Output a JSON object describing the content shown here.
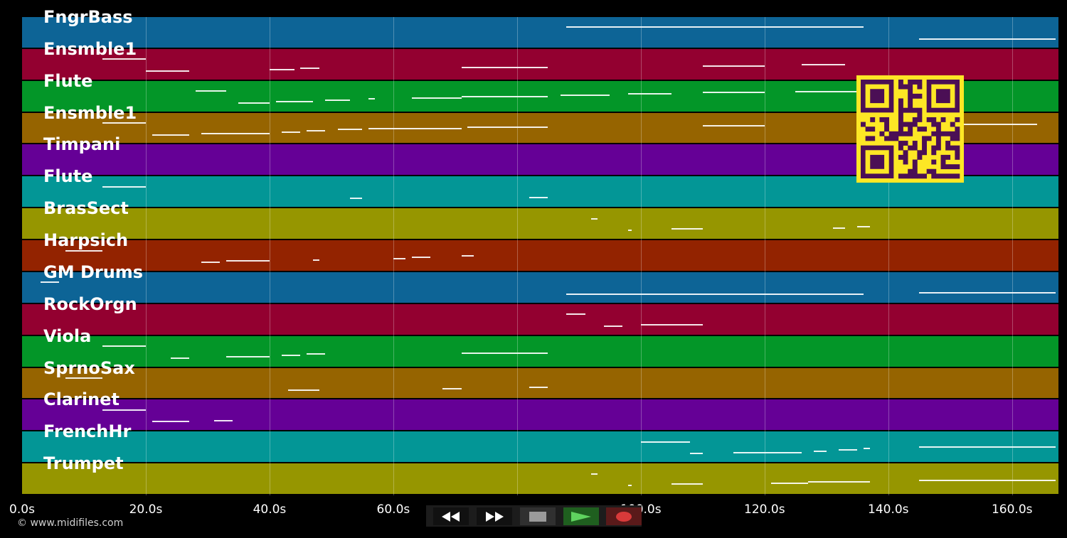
{
  "tracks": [
    {
      "label": "FngrBass",
      "color": "#0d6496"
    },
    {
      "label": "Ensmble1",
      "color": "#930030"
    },
    {
      "label": "Flute",
      "color": "#039628"
    },
    {
      "label": "Ensmble1",
      "color": "#966400"
    },
    {
      "label": "Timpani",
      "color": "#650096"
    },
    {
      "label": "Flute",
      "color": "#039696"
    },
    {
      "label": "BrasSect",
      "color": "#969600"
    },
    {
      "label": "Harpsich",
      "color": "#932300"
    },
    {
      "label": "GM Drums",
      "color": "#0d6496"
    },
    {
      "label": "RockOrgn",
      "color": "#930030"
    },
    {
      "label": "Viola",
      "color": "#039628"
    },
    {
      "label": "SprnoSax",
      "color": "#966400"
    },
    {
      "label": "Clarinet",
      "color": "#650096"
    },
    {
      "label": "FrenchHr",
      "color": "#039696"
    },
    {
      "label": "Trumpet",
      "color": "#969600"
    }
  ],
  "time_axis": {
    "ticks": [
      {
        "value": 0,
        "label": "0.0s"
      },
      {
        "value": 20,
        "label": "20.0s"
      },
      {
        "value": 40,
        "label": "40.0s"
      },
      {
        "value": 60,
        "label": "60.0s"
      },
      {
        "value": 80,
        "label": ""
      },
      {
        "value": 100,
        "label": "100.0s"
      },
      {
        "value": 120,
        "label": "120.0s"
      },
      {
        "value": 140,
        "label": "140.0s"
      },
      {
        "value": 160,
        "label": "160.0s"
      }
    ]
  },
  "notes": [
    [
      [
        88,
        136
      ],
      [
        145,
        167
      ]
    ],
    [
      [
        13,
        20
      ],
      [
        20,
        27
      ],
      [
        40,
        44
      ],
      [
        45,
        48
      ],
      [
        71,
        85
      ],
      [
        110,
        120
      ],
      [
        126,
        133
      ]
    ],
    [
      [
        28,
        33
      ],
      [
        35,
        40
      ],
      [
        41,
        47
      ],
      [
        49,
        53
      ],
      [
        56,
        57
      ],
      [
        63,
        71
      ],
      [
        71,
        85
      ],
      [
        87,
        95
      ],
      [
        98,
        105
      ],
      [
        110,
        120
      ],
      [
        125,
        135
      ]
    ],
    [
      [
        13,
        20
      ],
      [
        21,
        27
      ],
      [
        29,
        40
      ],
      [
        42,
        45
      ],
      [
        46,
        49
      ],
      [
        51,
        55
      ],
      [
        56,
        71
      ],
      [
        72,
        85
      ],
      [
        110,
        120
      ],
      [
        152,
        164
      ]
    ],
    [],
    [
      [
        13,
        20
      ],
      [
        53,
        55
      ],
      [
        82,
        85
      ]
    ],
    [
      [
        92,
        93
      ],
      [
        98,
        98.5
      ],
      [
        105,
        110
      ],
      [
        131,
        133
      ],
      [
        135,
        137
      ]
    ],
    [
      [
        7,
        13
      ],
      [
        29,
        32
      ],
      [
        33,
        40
      ],
      [
        47,
        48
      ],
      [
        60,
        62
      ],
      [
        63,
        66
      ],
      [
        71,
        73
      ]
    ],
    [
      [
        3,
        6
      ],
      [
        88,
        136
      ],
      [
        145,
        167
      ]
    ],
    [
      [
        88,
        91
      ],
      [
        94,
        97
      ],
      [
        100,
        110
      ]
    ],
    [
      [
        13,
        20
      ],
      [
        24,
        27
      ],
      [
        33,
        40
      ],
      [
        42,
        45
      ],
      [
        46,
        49
      ],
      [
        71,
        85
      ]
    ],
    [
      [
        7,
        13
      ],
      [
        43,
        48
      ],
      [
        68,
        71
      ],
      [
        82,
        85
      ]
    ],
    [
      [
        13,
        20
      ],
      [
        21,
        27
      ],
      [
        31,
        34
      ]
    ],
    [
      [
        100,
        108
      ],
      [
        108,
        110
      ],
      [
        115,
        126
      ],
      [
        128,
        130
      ],
      [
        132,
        135
      ],
      [
        136,
        137
      ],
      [
        145,
        167
      ]
    ],
    [
      [
        92,
        93
      ],
      [
        98,
        98.5
      ],
      [
        105,
        110
      ],
      [
        121,
        127
      ],
      [
        127,
        137
      ],
      [
        145,
        167
      ]
    ]
  ],
  "time_max": 167.5,
  "copyright": "© www.midifiles.com",
  "controls": {
    "rewind": "rewind-icon",
    "fast_forward": "fast-forward-icon",
    "stop": "stop-icon",
    "play": "play-icon",
    "record": "record-icon"
  },
  "qr_colors": {
    "fg": "#4b0f55",
    "bg": "#fde725"
  }
}
